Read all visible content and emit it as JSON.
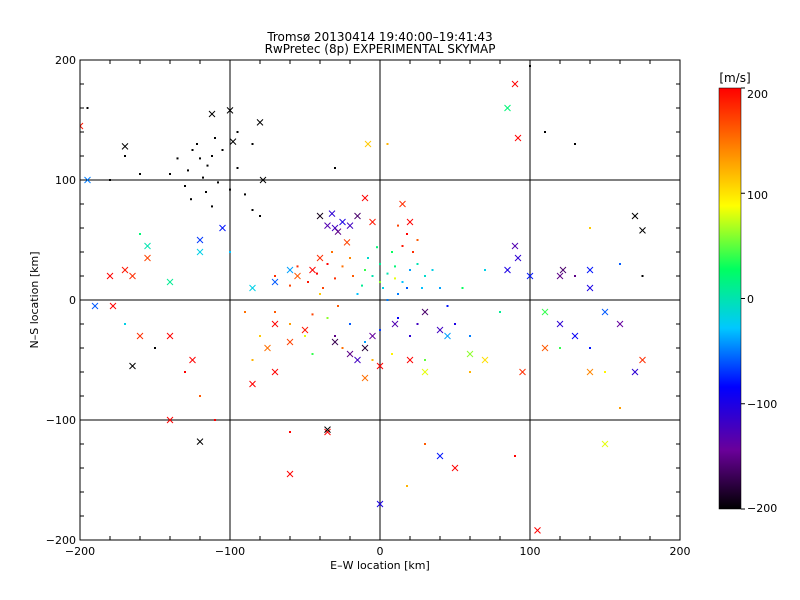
{
  "chart_data": {
    "type": "scatter",
    "title": "Tromsø 20130414 19:40:00–19:41:43",
    "subtitle": "RwPretec (8p) EXPERIMENTAL SKYMAP",
    "xlabel": "E–W location [km]",
    "ylabel": "N–S location [km]",
    "xlim": [
      -200,
      200
    ],
    "ylim": [
      -200,
      200
    ],
    "xticks": [
      "−200",
      "−100",
      "0",
      "100",
      "200"
    ],
    "yticks": [
      "−200",
      "−100",
      "0",
      "100",
      "200"
    ],
    "grid": true,
    "colorbar": {
      "label": "[m/s]",
      "range": [
        -200,
        200
      ],
      "ticks": [
        "200",
        "100",
        "0",
        "−100",
        "−200"
      ],
      "colormap": [
        "#000000",
        "#6a009a",
        "#0000ff",
        "#00c8ff",
        "#00ff60",
        "#ffff00",
        "#ff8000",
        "#ff0000"
      ]
    },
    "series": [
      {
        "marker": "dot",
        "points": [
          [
            -125,
            125,
            -200
          ],
          [
            -120,
            118,
            -200
          ],
          [
            -115,
            112,
            -200
          ],
          [
            -128,
            108,
            -200
          ],
          [
            -112,
            120,
            -200
          ],
          [
            -118,
            102,
            -200
          ],
          [
            -130,
            95,
            -200
          ],
          [
            -108,
            98,
            -200
          ],
          [
            -122,
            130,
            -200
          ],
          [
            -135,
            118,
            -200
          ],
          [
            -110,
            135,
            -200
          ],
          [
            -95,
            110,
            -200
          ],
          [
            -100,
            92,
            -200
          ],
          [
            -90,
            88,
            -200
          ],
          [
            -140,
            105,
            -200
          ],
          [
            -105,
            125,
            -200
          ],
          [
            -116,
            90,
            -200
          ],
          [
            -126,
            84,
            -200
          ],
          [
            -85,
            75,
            -200
          ],
          [
            -80,
            70,
            -200
          ],
          [
            -112,
            78,
            -200
          ],
          [
            -170,
            120,
            -200
          ],
          [
            -160,
            105,
            -200
          ],
          [
            -95,
            140,
            -200
          ],
          [
            -85,
            130,
            -200
          ],
          [
            -35,
            30,
            200
          ],
          [
            -42,
            22,
            200
          ],
          [
            -48,
            15,
            190
          ],
          [
            -30,
            18,
            180
          ],
          [
            -38,
            10,
            170
          ],
          [
            -25,
            28,
            150
          ],
          [
            -20,
            35,
            140
          ],
          [
            -28,
            -5,
            160
          ],
          [
            -45,
            -12,
            170
          ],
          [
            -55,
            28,
            180
          ],
          [
            -60,
            12,
            170
          ],
          [
            -32,
            40,
            150
          ],
          [
            -18,
            20,
            160
          ],
          [
            15,
            45,
            190
          ],
          [
            18,
            55,
            200
          ],
          [
            22,
            40,
            180
          ],
          [
            12,
            62,
            170
          ],
          [
            25,
            50,
            160
          ],
          [
            0,
            30,
            10
          ],
          [
            5,
            22,
            0
          ],
          [
            10,
            28,
            20
          ],
          [
            -5,
            20,
            0
          ],
          [
            15,
            15,
            -30
          ],
          [
            20,
            25,
            -40
          ],
          [
            -8,
            35,
            -10
          ],
          [
            2,
            10,
            -20
          ],
          [
            8,
            40,
            30
          ],
          [
            25,
            30,
            0
          ],
          [
            30,
            20,
            -10
          ],
          [
            -12,
            12,
            10
          ],
          [
            12,
            5,
            -50
          ],
          [
            18,
            10,
            -60
          ],
          [
            -2,
            44,
            20
          ],
          [
            28,
            10,
            -30
          ],
          [
            35,
            25,
            -20
          ],
          [
            5,
            0,
            -50
          ],
          [
            -15,
            5,
            -30
          ],
          [
            -10,
            25,
            40
          ],
          [
            0,
            15,
            60
          ],
          [
            10,
            18,
            80
          ],
          [
            -20,
            -20,
            -60
          ],
          [
            -10,
            -35,
            -40
          ],
          [
            0,
            -25,
            -70
          ],
          [
            12,
            -15,
            -90
          ],
          [
            20,
            -30,
            -110
          ],
          [
            -25,
            -40,
            150
          ],
          [
            -5,
            -50,
            120
          ],
          [
            8,
            -45,
            90
          ],
          [
            -30,
            -30,
            -150
          ],
          [
            25,
            -20,
            -120
          ],
          [
            -35,
            -15,
            60
          ],
          [
            -40,
            5,
            110
          ],
          [
            40,
            10,
            -40
          ],
          [
            45,
            -5,
            -80
          ],
          [
            50,
            -20,
            -100
          ],
          [
            60,
            -30,
            -50
          ],
          [
            55,
            10,
            30
          ],
          [
            -50,
            -30,
            80
          ],
          [
            -60,
            -20,
            130
          ],
          [
            -70,
            -10,
            160
          ],
          [
            -70,
            20,
            180
          ],
          [
            70,
            25,
            -20
          ],
          [
            80,
            -10,
            10
          ],
          [
            -45,
            -45,
            40
          ],
          [
            30,
            -50,
            50
          ],
          [
            -80,
            -30,
            110
          ],
          [
            -90,
            -10,
            150
          ],
          [
            -100,
            40,
            -30
          ],
          [
            -120,
            -80,
            160
          ],
          [
            -85,
            -50,
            120
          ],
          [
            110,
            140,
            -200
          ],
          [
            130,
            130,
            -200
          ],
          [
            175,
            20,
            -200
          ],
          [
            160,
            -90,
            130
          ],
          [
            150,
            -60,
            90
          ],
          [
            -170,
            -20,
            -20
          ],
          [
            140,
            60,
            110
          ],
          [
            160,
            30,
            -60
          ],
          [
            -150,
            -40,
            -200
          ],
          [
            -110,
            -100,
            200
          ],
          [
            -60,
            -110,
            200
          ],
          [
            30,
            -120,
            160
          ],
          [
            18,
            -155,
            120
          ],
          [
            -130,
            -60,
            200
          ],
          [
            90,
            -130,
            200
          ],
          [
            140,
            -40,
            -80
          ],
          [
            130,
            20,
            -150
          ],
          [
            100,
            195,
            -200
          ],
          [
            -195,
            160,
            -200
          ],
          [
            -180,
            100,
            -200
          ],
          [
            60,
            -60,
            120
          ],
          [
            120,
            -40,
            40
          ],
          [
            -160,
            55,
            20
          ],
          [
            5,
            130,
            120
          ],
          [
            -30,
            110,
            -200
          ]
        ]
      },
      {
        "marker": "cross",
        "points": [
          [
            -170,
            128,
            -200
          ],
          [
            -120,
            -118,
            -200
          ],
          [
            -165,
            -55,
            -200
          ],
          [
            -100,
            158,
            -200
          ],
          [
            -98,
            132,
            -200
          ],
          [
            -78,
            100,
            -200
          ],
          [
            -112,
            155,
            -200
          ],
          [
            -80,
            148,
            -200
          ],
          [
            170,
            70,
            -200
          ],
          [
            175,
            58,
            -200
          ],
          [
            -30,
            60,
            -120
          ],
          [
            -25,
            65,
            -100
          ],
          [
            -35,
            62,
            -130
          ],
          [
            -28,
            57,
            -150
          ],
          [
            -20,
            62,
            -120
          ],
          [
            -15,
            70,
            -160
          ],
          [
            -40,
            70,
            -190
          ],
          [
            -32,
            72,
            -110
          ],
          [
            -20,
            -45,
            -150
          ],
          [
            -30,
            -35,
            -170
          ],
          [
            -10,
            -40,
            -180
          ],
          [
            -15,
            -50,
            -120
          ],
          [
            -5,
            -30,
            -140
          ],
          [
            30,
            -10,
            -160
          ],
          [
            40,
            -25,
            -120
          ],
          [
            10,
            -20,
            -130
          ],
          [
            -180,
            20,
            200
          ],
          [
            -170,
            25,
            190
          ],
          [
            -155,
            35,
            170
          ],
          [
            -165,
            20,
            180
          ],
          [
            -120,
            40,
            -20
          ],
          [
            -155,
            45,
            0
          ],
          [
            -140,
            15,
            10
          ],
          [
            -190,
            -5,
            -60
          ],
          [
            -140,
            -30,
            200
          ],
          [
            -160,
            -30,
            180
          ],
          [
            -60,
            -145,
            200
          ],
          [
            50,
            -140,
            200
          ],
          [
            90,
            180,
            200
          ],
          [
            92,
            135,
            200
          ],
          [
            105,
            -192,
            200
          ],
          [
            -70,
            -60,
            200
          ],
          [
            -85,
            -70,
            200
          ],
          [
            -35,
            -110,
            200
          ],
          [
            -200,
            145,
            190
          ],
          [
            -195,
            100,
            -50
          ],
          [
            -178,
            -5,
            200
          ],
          [
            -125,
            -50,
            200
          ],
          [
            -140,
            -100,
            200
          ],
          [
            95,
            -60,
            180
          ],
          [
            110,
            -40,
            160
          ],
          [
            140,
            -60,
            140
          ],
          [
            -60,
            -35,
            170
          ],
          [
            -50,
            -25,
            190
          ],
          [
            -70,
            -20,
            200
          ],
          [
            -75,
            -40,
            150
          ],
          [
            90,
            45,
            -130
          ],
          [
            92,
            35,
            -110
          ],
          [
            85,
            25,
            -100
          ],
          [
            100,
            20,
            -80
          ],
          [
            120,
            -20,
            -110
          ],
          [
            130,
            -30,
            -90
          ],
          [
            140,
            10,
            -100
          ],
          [
            150,
            -10,
            -60
          ],
          [
            160,
            -20,
            -140
          ],
          [
            170,
            -60,
            -110
          ],
          [
            -120,
            50,
            -70
          ],
          [
            -105,
            60,
            -80
          ],
          [
            140,
            25,
            -80
          ],
          [
            120,
            20,
            -150
          ],
          [
            122,
            25,
            -160
          ],
          [
            -60,
            25,
            -40
          ],
          [
            -70,
            15,
            -60
          ],
          [
            -85,
            10,
            -20
          ],
          [
            45,
            -30,
            -40
          ],
          [
            60,
            -45,
            60
          ],
          [
            70,
            -50,
            100
          ],
          [
            30,
            -60,
            80
          ],
          [
            0,
            -170,
            -100
          ],
          [
            40,
            -130,
            -80
          ],
          [
            -35,
            -108,
            -200
          ],
          [
            20,
            -50,
            200
          ],
          [
            0,
            -55,
            200
          ],
          [
            -10,
            -65,
            150
          ],
          [
            20,
            65,
            200
          ],
          [
            15,
            80,
            180
          ],
          [
            -10,
            85,
            200
          ],
          [
            -5,
            65,
            190
          ],
          [
            -22,
            48,
            170
          ],
          [
            -40,
            35,
            180
          ],
          [
            -45,
            25,
            200
          ],
          [
            -55,
            20,
            160
          ],
          [
            85,
            160,
            20
          ],
          [
            150,
            -120,
            80
          ],
          [
            175,
            -50,
            180
          ],
          [
            -8,
            130,
            110
          ],
          [
            110,
            -10,
            40
          ]
        ]
      }
    ]
  }
}
